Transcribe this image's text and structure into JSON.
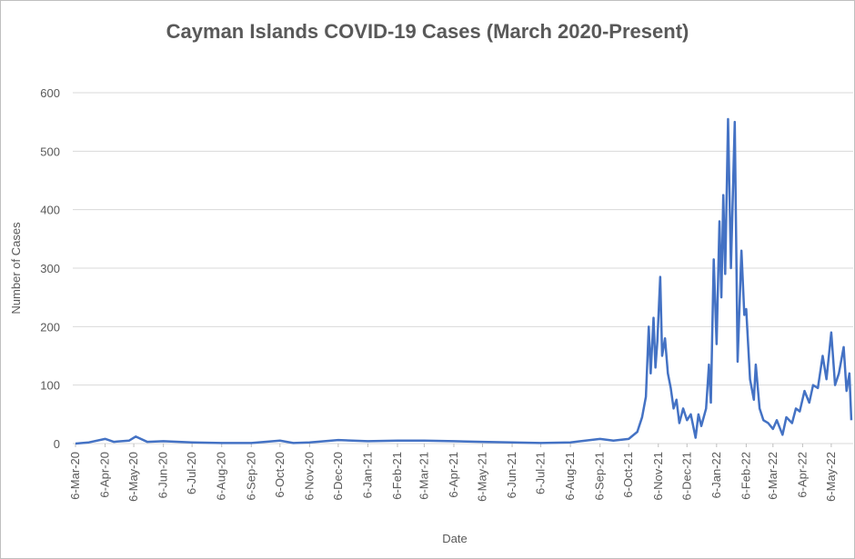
{
  "chart_data": {
    "type": "line",
    "title": "Cayman Islands COVID-19 Cases (March 2020-Present)",
    "x_label": "Date",
    "y_label": "Number of Cases",
    "grid": true,
    "xlim": [
      "6-Mar-20",
      "28-May-22"
    ],
    "ylim": [
      0,
      600
    ],
    "yticks": [
      0,
      100,
      200,
      300,
      400,
      500,
      600
    ],
    "xticks": [
      "6-Mar-20",
      "6-Apr-20",
      "6-May-20",
      "6-Jun-20",
      "6-Jul-20",
      "6-Aug-20",
      "6-Sep-20",
      "6-Oct-20",
      "6-Nov-20",
      "6-Dec-20",
      "6-Jan-21",
      "6-Feb-21",
      "6-Mar-21",
      "6-Apr-21",
      "6-May-21",
      "6-Jun-21",
      "6-Jul-21",
      "6-Aug-21",
      "6-Sep-21",
      "6-Oct-21",
      "6-Nov-21",
      "6-Dec-21",
      "6-Jan-22",
      "6-Feb-22",
      "6-Mar-22",
      "6-Apr-22",
      "6-May-22"
    ],
    "x": [
      "6-Mar-20",
      "20-Mar-20",
      "6-Apr-20",
      "15-Apr-20",
      "1-May-20",
      "8-May-20",
      "20-May-20",
      "6-Jun-20",
      "6-Jul-20",
      "6-Aug-20",
      "6-Sep-20",
      "6-Oct-20",
      "20-Oct-20",
      "6-Nov-20",
      "6-Dec-20",
      "6-Jan-21",
      "6-Feb-21",
      "6-Mar-21",
      "6-Apr-21",
      "6-May-21",
      "6-Jun-21",
      "6-Jul-21",
      "6-Aug-21",
      "6-Sep-21",
      "20-Sep-21",
      "6-Oct-21",
      "15-Oct-21",
      "20-Oct-21",
      "24-Oct-21",
      "27-Oct-21",
      "29-Oct-21",
      "1-Nov-21",
      "3-Nov-21",
      "5-Nov-21",
      "8-Nov-21",
      "10-Nov-21",
      "13-Nov-21",
      "16-Nov-21",
      "19-Nov-21",
      "22-Nov-21",
      "25-Nov-21",
      "28-Nov-21",
      "2-Dec-21",
      "6-Dec-21",
      "10-Dec-21",
      "15-Dec-21",
      "18-Dec-21",
      "21-Dec-21",
      "26-Dec-21",
      "29-Dec-21",
      "31-Dec-21",
      "3-Jan-22",
      "6-Jan-22",
      "9-Jan-22",
      "11-Jan-22",
      "13-Jan-22",
      "15-Jan-22",
      "18-Jan-22",
      "21-Jan-22",
      "25-Jan-22",
      "28-Jan-22",
      "1-Feb-22",
      "4-Feb-22",
      "6-Feb-22",
      "10-Feb-22",
      "14-Feb-22",
      "16-Feb-22",
      "20-Feb-22",
      "24-Feb-22",
      "1-Mar-22",
      "6-Mar-22",
      "10-Mar-22",
      "16-Mar-22",
      "20-Mar-22",
      "26-Mar-22",
      "30-Mar-22",
      "3-Apr-22",
      "8-Apr-22",
      "13-Apr-22",
      "17-Apr-22",
      "22-Apr-22",
      "27-Apr-22",
      "1-May-22",
      "6-May-22",
      "10-May-22",
      "14-May-22",
      "19-May-22",
      "22-May-22",
      "25-May-22",
      "27-May-22"
    ],
    "series": [
      {
        "name": "Cases",
        "color": "#4472c4",
        "values": [
          0,
          2,
          8,
          3,
          5,
          12,
          3,
          4,
          2,
          1,
          1,
          5,
          1,
          2,
          6,
          4,
          5,
          5,
          4,
          3,
          2,
          1,
          2,
          8,
          5,
          8,
          20,
          45,
          80,
          200,
          120,
          215,
          130,
          175,
          285,
          150,
          180,
          120,
          95,
          60,
          75,
          35,
          60,
          40,
          50,
          10,
          50,
          30,
          60,
          135,
          70,
          315,
          170,
          380,
          250,
          425,
          290,
          555,
          300,
          550,
          140,
          330,
          220,
          230,
          110,
          75,
          135,
          60,
          40,
          35,
          25,
          40,
          15,
          45,
          35,
          60,
          55,
          90,
          70,
          100,
          95,
          150,
          110,
          190,
          100,
          120,
          165,
          90,
          120,
          40
        ]
      }
    ]
  }
}
